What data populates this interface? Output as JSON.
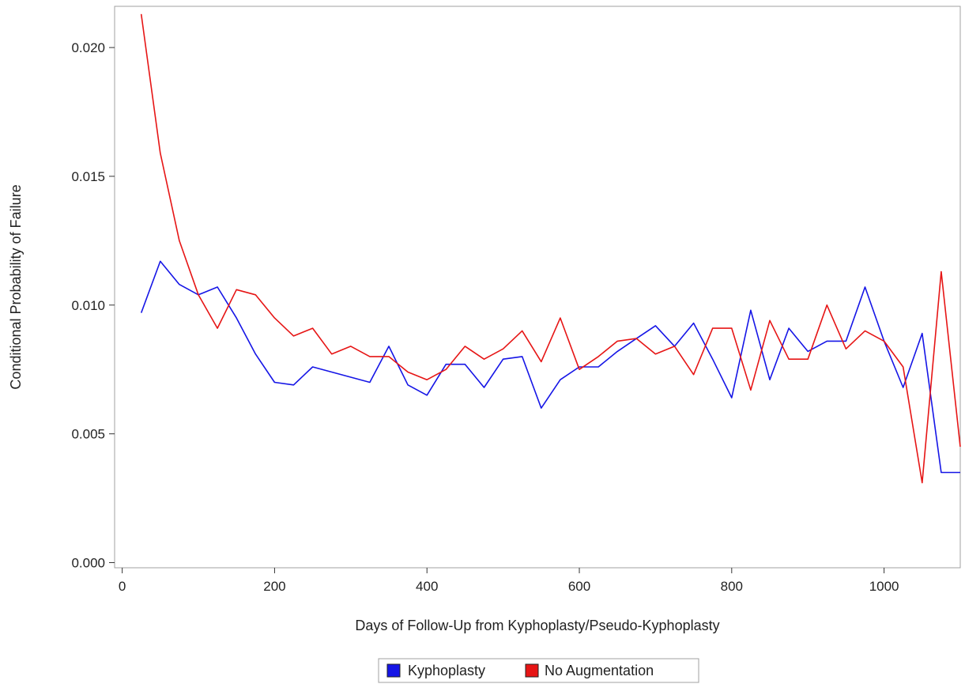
{
  "chart_data": {
    "type": "line",
    "title": "",
    "xlabel": "Days of Follow-Up from Kyphoplasty/Pseudo-Kyphoplasty",
    "ylabel": "Conditional Probability of Failure",
    "xlim": [
      -10,
      1100
    ],
    "ylim": [
      -0.0002,
      0.0216
    ],
    "x_ticks": [
      0,
      200,
      400,
      600,
      800,
      1000
    ],
    "x_tick_labels": [
      "0",
      "200",
      "400",
      "600",
      "800",
      "1000"
    ],
    "y_ticks": [
      0.0,
      0.005,
      0.01,
      0.015,
      0.02
    ],
    "y_tick_labels": [
      "0.000",
      "0.005",
      "0.010",
      "0.015",
      "0.020"
    ],
    "grid": false,
    "legend_position": "bottom-center",
    "series": [
      {
        "name": "Kyphoplasty",
        "color": "#1515e6",
        "x": [
          25,
          50,
          75,
          100,
          125,
          150,
          175,
          200,
          225,
          250,
          275,
          300,
          325,
          350,
          375,
          400,
          425,
          450,
          475,
          500,
          525,
          550,
          575,
          600,
          625,
          650,
          675,
          700,
          725,
          750,
          775,
          800,
          825,
          850,
          875,
          900,
          925,
          950,
          975,
          1000,
          1025,
          1050,
          1075,
          1100
        ],
        "values": [
          0.0097,
          0.0117,
          0.0108,
          0.0104,
          0.0107,
          0.0095,
          0.0081,
          0.007,
          0.0069,
          0.0076,
          0.0074,
          0.0072,
          0.007,
          0.0084,
          0.0069,
          0.0065,
          0.0077,
          0.0077,
          0.0068,
          0.0079,
          0.008,
          0.006,
          0.0071,
          0.0076,
          0.0076,
          0.0082,
          0.0087,
          0.0092,
          0.0084,
          0.0093,
          0.0079,
          0.0064,
          0.0098,
          0.0071,
          0.0091,
          0.0082,
          0.0086,
          0.0086,
          0.0107,
          0.0086,
          0.0068,
          0.0089,
          0.0035,
          0.0035
        ]
      },
      {
        "name": "No Augmentation",
        "color": "#e61515",
        "x": [
          25,
          50,
          75,
          100,
          125,
          150,
          175,
          200,
          225,
          250,
          275,
          300,
          325,
          350,
          375,
          400,
          425,
          450,
          475,
          500,
          525,
          550,
          575,
          600,
          625,
          650,
          675,
          700,
          725,
          750,
          775,
          800,
          825,
          850,
          875,
          900,
          925,
          950,
          975,
          1000,
          1025,
          1050,
          1075,
          1100
        ],
        "values": [
          0.0213,
          0.0159,
          0.0125,
          0.0104,
          0.0091,
          0.0106,
          0.0104,
          0.0095,
          0.0088,
          0.0091,
          0.0081,
          0.0084,
          0.008,
          0.008,
          0.0074,
          0.0071,
          0.0075,
          0.0084,
          0.0079,
          0.0083,
          0.009,
          0.0078,
          0.0095,
          0.0075,
          0.008,
          0.0086,
          0.0087,
          0.0081,
          0.0084,
          0.0073,
          0.0091,
          0.0091,
          0.0067,
          0.0094,
          0.0079,
          0.0079,
          0.01,
          0.0083,
          0.009,
          0.0086,
          0.0076,
          0.0031,
          0.0113,
          0.0045
        ]
      }
    ]
  }
}
